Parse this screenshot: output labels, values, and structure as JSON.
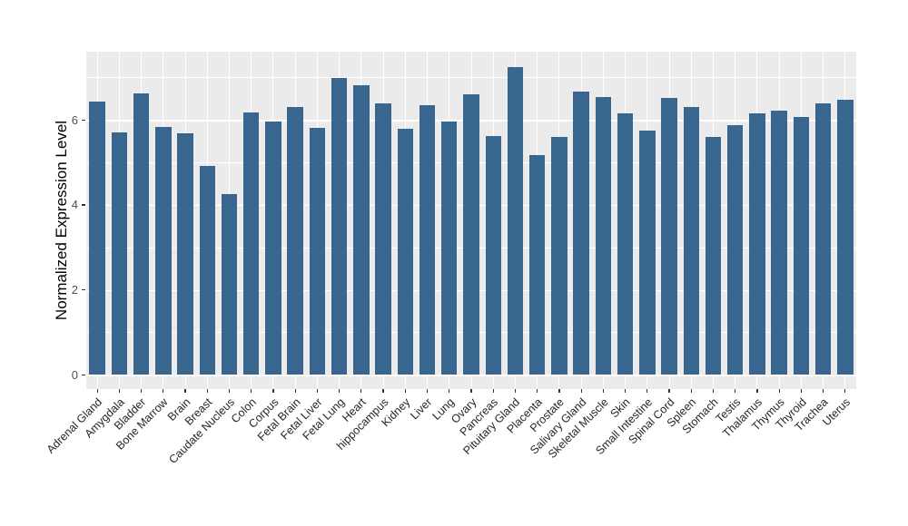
{
  "chart_data": {
    "type": "bar",
    "title": "",
    "xlabel": "",
    "ylabel": "Normalized Expression Level",
    "ylim": [
      0,
      7.6
    ],
    "ytick_labels": [
      "0",
      "2",
      "4",
      "6"
    ],
    "yticks": [
      0,
      2,
      4,
      6
    ],
    "minor_gridlines": [
      1,
      3,
      5,
      7
    ],
    "grid": true,
    "legend_position": "none",
    "x_label_rotation_deg": 45,
    "categories": [
      "Adrenal Gland",
      "Amygdala",
      "Bladder",
      "Bone Marrow",
      "Brain",
      "Breast",
      "Caudate Nucleus",
      "Colon",
      "Corpus",
      "Fetal Brain",
      "Fetal Liver",
      "Fetal Lung",
      "Heart",
      "hippocampus",
      "Kidney",
      "Liver",
      "Lung",
      "Ovary",
      "Pancreas",
      "Pituitary Gland",
      "Placenta",
      "Prostate",
      "Salivary Gland",
      "Skeletal Muscle",
      "Skin",
      "Small Intestine",
      "Spinal Cord",
      "Spleen",
      "Stomach",
      "Testis",
      "Thalamus",
      "Thymus",
      "Thyroid",
      "Trachea",
      "Uterus"
    ],
    "values": [
      6.44,
      5.71,
      6.63,
      5.83,
      5.68,
      4.91,
      4.26,
      6.18,
      5.96,
      6.31,
      5.81,
      6.99,
      6.82,
      6.39,
      5.79,
      6.34,
      5.96,
      6.61,
      5.62,
      7.25,
      5.17,
      5.6,
      6.67,
      6.54,
      6.16,
      5.74,
      6.53,
      6.3,
      5.61,
      5.87,
      6.16,
      6.23,
      6.07,
      6.39,
      6.48
    ],
    "colors": {
      "bar": "#38668E",
      "panel_background": "#EBEBEB",
      "gridline": "#FFFFFF",
      "tick_label": "#4D4D4D",
      "x_tick_label": "#262626",
      "axis_title": "#000000",
      "tick_mark": "#333333"
    }
  }
}
